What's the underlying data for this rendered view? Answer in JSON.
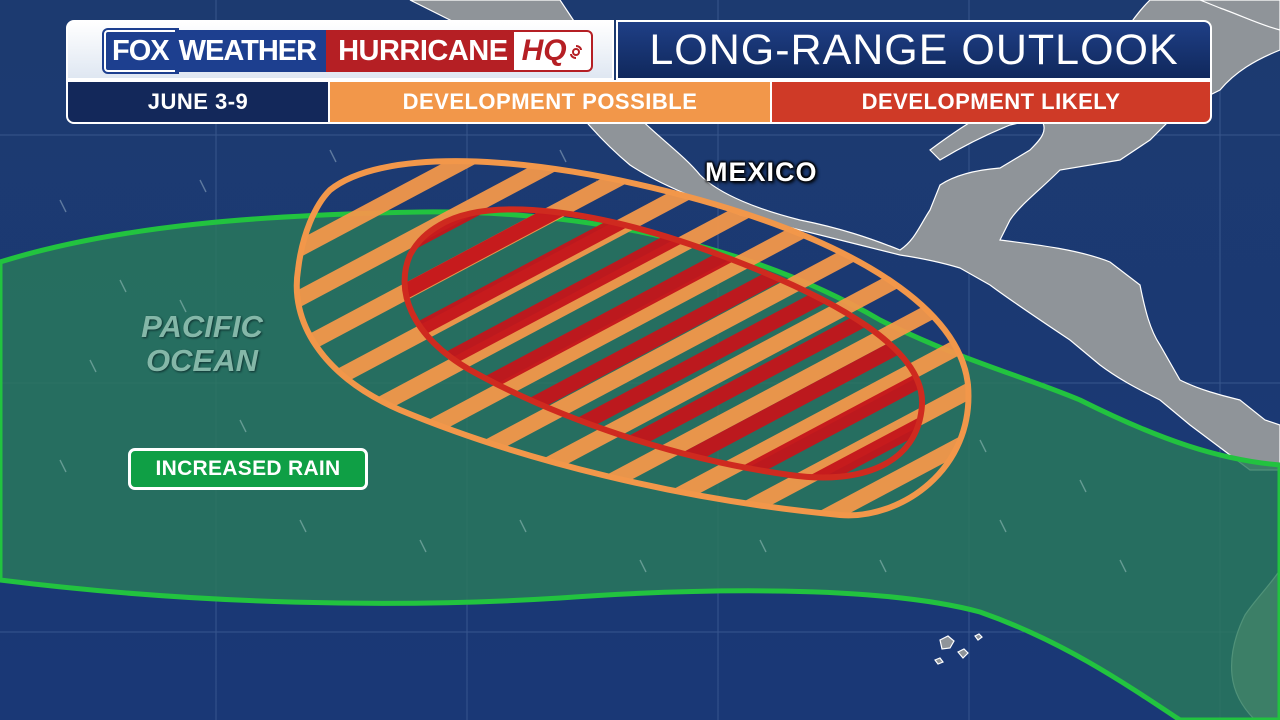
{
  "header": {
    "brand": {
      "fox": "FOX",
      "weather": "WEATHER",
      "hurricane": "HURRICANE",
      "hq": "HQ"
    },
    "title": "LONG-RANGE OUTLOOK",
    "date_range": "JUNE 3-9",
    "legend_possible": "DEVELOPMENT POSSIBLE",
    "legend_likely": "DEVELOPMENT LIKELY"
  },
  "map": {
    "labels": {
      "country": "MEXICO",
      "ocean_line1": "PACIFIC",
      "ocean_line2": "OCEAN"
    },
    "rain_label": "INCREASED RAIN",
    "colors": {
      "ocean": "#1b3a72",
      "land": "#8f9499",
      "rain_zone": "#2a7a5c",
      "rain_outline": "#22c33f",
      "possible": "#f2974a",
      "likely": "#cf2a1f",
      "title_bar": "#13285a"
    },
    "zones": [
      {
        "name": "increased-rain",
        "color": "#22c33f"
      },
      {
        "name": "development-possible",
        "color": "#f2974a",
        "pattern": "hatched"
      },
      {
        "name": "development-likely",
        "color": "#cf2a1f",
        "pattern": "hatched"
      }
    ]
  }
}
